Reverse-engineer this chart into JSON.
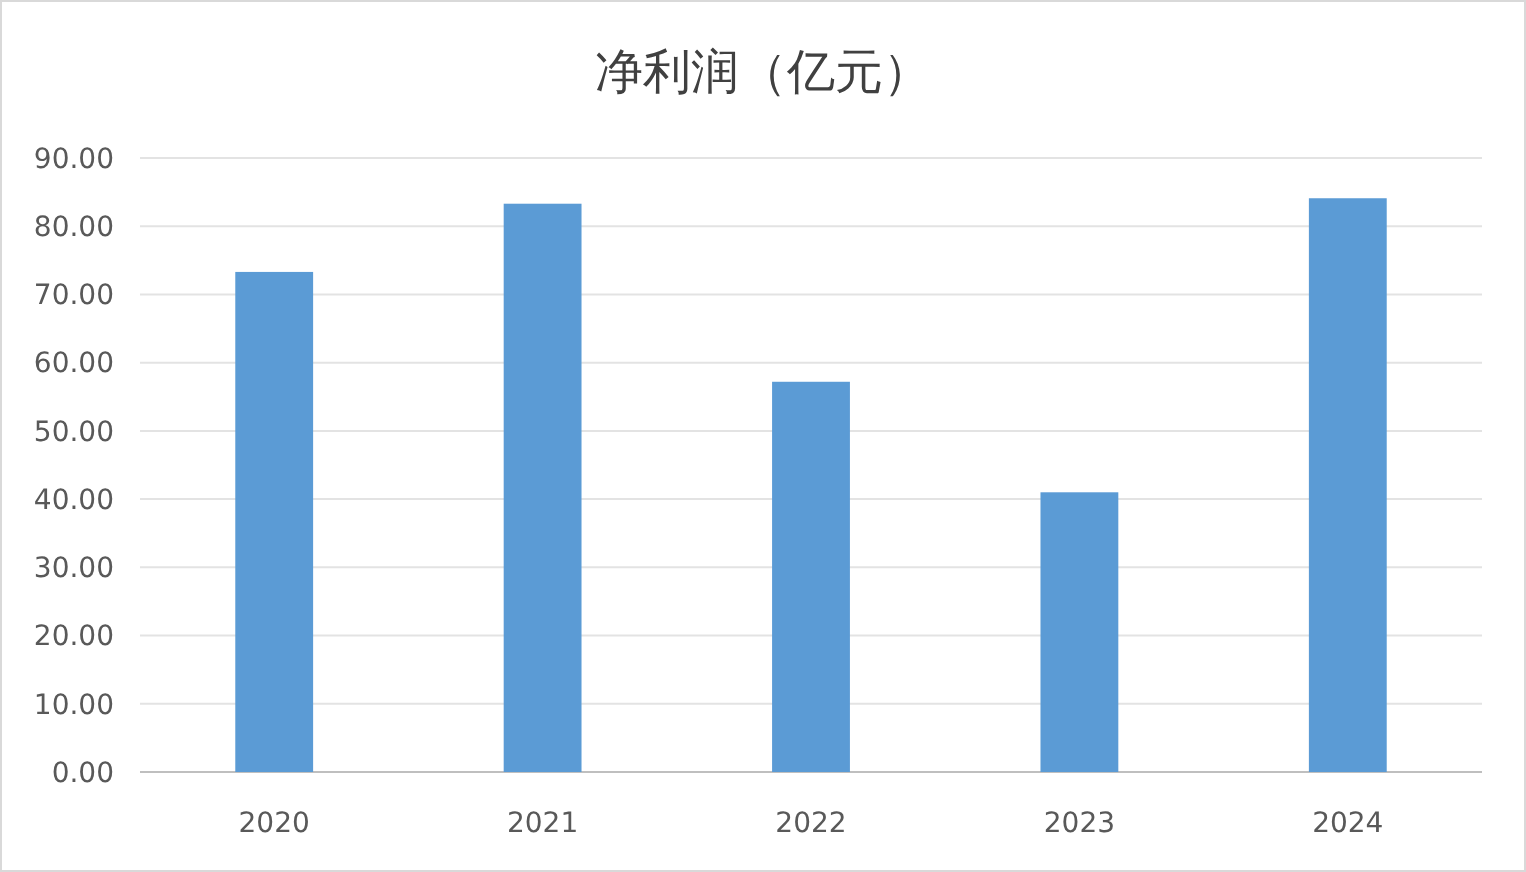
{
  "chart_data": {
    "type": "bar",
    "title": "净利润（亿元）",
    "categories": [
      "2020",
      "2021",
      "2022",
      "2023",
      "2024"
    ],
    "values": [
      73.3,
      83.3,
      57.2,
      41.0,
      84.1
    ],
    "color": "#5b9bd5",
    "ylim": [
      0,
      90
    ],
    "yticks": [
      {
        "value": 0,
        "label": "0.00"
      },
      {
        "value": 10,
        "label": "10.00"
      },
      {
        "value": 20,
        "label": "20.00"
      },
      {
        "value": 30,
        "label": "30.00"
      },
      {
        "value": 40,
        "label": "40.00"
      },
      {
        "value": 50,
        "label": "50.00"
      },
      {
        "value": 60,
        "label": "60.00"
      },
      {
        "value": 70,
        "label": "70.00"
      },
      {
        "value": 80,
        "label": "80.00"
      },
      {
        "value": 90,
        "label": "90.00"
      }
    ],
    "grid": "y"
  }
}
